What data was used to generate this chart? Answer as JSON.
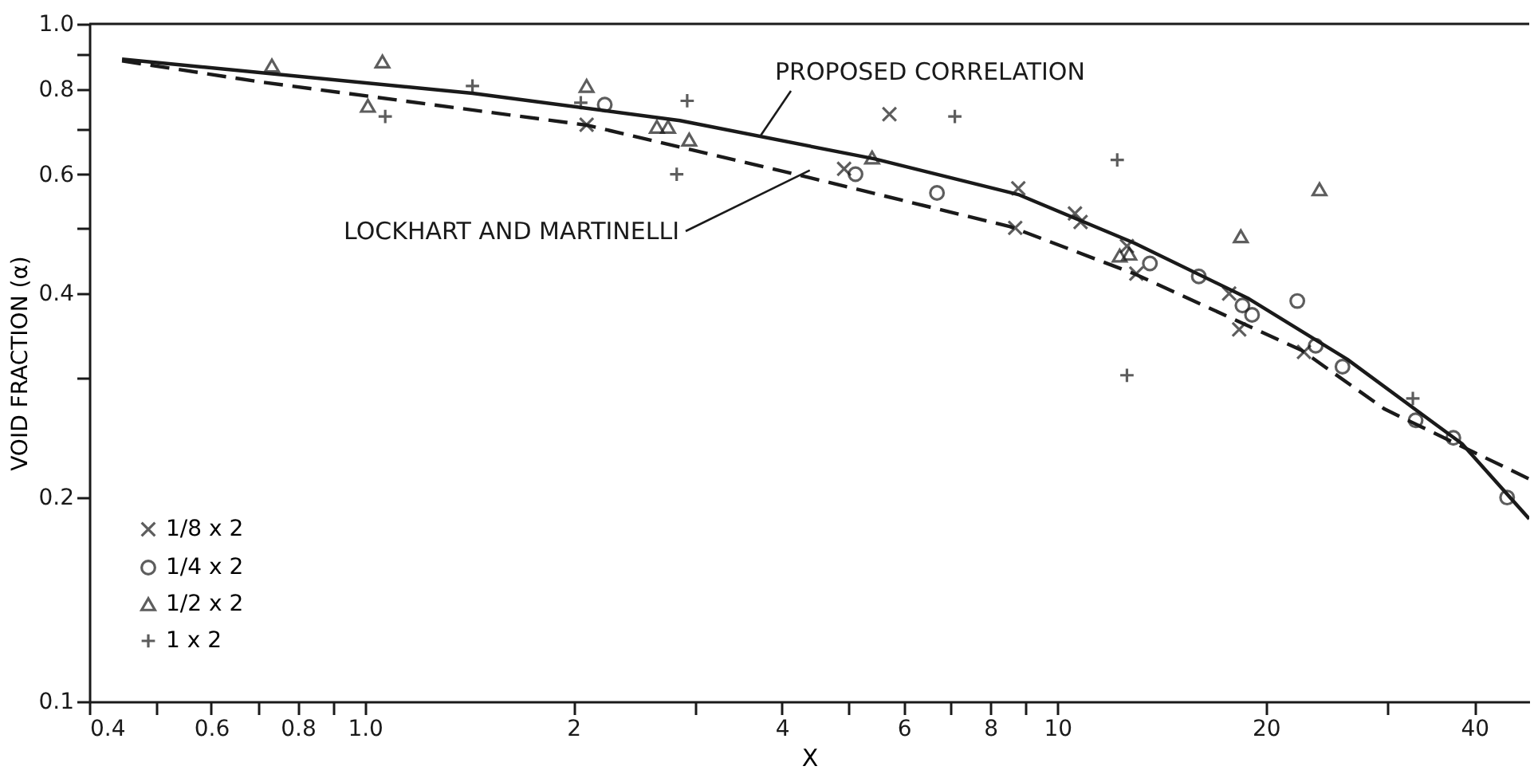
{
  "chart_data": {
    "type": "scatter",
    "xlabel": "X",
    "ylabel": "VOID FRACTION (α)",
    "log": "xy",
    "grid": false,
    "legend": "bottom left",
    "xlim": [
      0.4,
      48
    ],
    "ylim": [
      0.1,
      1.0
    ],
    "xticks": [
      0.4,
      {
        "value": 0.5,
        "label": null
      },
      0.6,
      {
        "value": 0.7,
        "label": null
      },
      0.8,
      {
        "value": 0.9,
        "label": null
      },
      {
        "value": 1,
        "label": "1.0"
      },
      2,
      {
        "value": 3,
        "label": null
      },
      4,
      {
        "value": 5,
        "label": null
      },
      6,
      {
        "value": 7,
        "label": null
      },
      8,
      {
        "value": 9,
        "label": null
      },
      10,
      20,
      {
        "value": 30,
        "label": null
      },
      40
    ],
    "yticks": [
      0.1,
      {
        "value": 0.2,
        "label": "0.2"
      },
      {
        "value": 0.3,
        "label": null
      },
      0.4,
      {
        "value": 0.5,
        "label": null
      },
      0.6,
      {
        "value": 0.7,
        "label": null
      },
      0.8,
      {
        "value": 0.9,
        "label": null
      },
      {
        "value": 1,
        "label": "1.0"
      }
    ],
    "series": [
      {
        "name": "1/8 x 2",
        "marker": "x",
        "color": "#1a1a1a",
        "x": [
          2.09,
          5.72,
          4.92,
          8.78,
          8.69,
          10.6,
          10.8,
          12.6,
          13.0,
          17.7,
          18.3,
          22.7
        ],
        "values": [
          0.71,
          0.736,
          0.611,
          0.572,
          0.5,
          0.525,
          0.51,
          0.47,
          0.428,
          0.4,
          0.354,
          0.328
        ]
      },
      {
        "name": "1/4 x 2",
        "marker": "circle",
        "color": "#1a1a1a",
        "x": [
          2.22,
          5.11,
          6.7,
          13.6,
          16.0,
          18.5,
          19.1,
          22.2,
          23.6,
          25.8,
          32.9,
          37.3,
          44.6
        ],
        "values": [
          0.76,
          0.6,
          0.563,
          0.443,
          0.424,
          0.384,
          0.372,
          0.39,
          0.335,
          0.312,
          0.26,
          0.245,
          0.2
        ]
      },
      {
        "name": "1/2 x 2",
        "marker": "triangle",
        "color": "#1a1a1a",
        "x": [
          0.734,
          1.06,
          1.01,
          2.09,
          2.64,
          2.74,
          2.94,
          5.4,
          12.3,
          12.7,
          18.4,
          23.9
        ],
        "values": [
          0.868,
          0.88,
          0.757,
          0.81,
          0.705,
          0.705,
          0.675,
          0.635,
          0.455,
          0.458,
          0.486,
          0.57
        ]
      },
      {
        "name": "1 x 2",
        "marker": "cross",
        "color": "#1a1a1a",
        "x": [
          1.07,
          1.43,
          2.05,
          2.92,
          2.82,
          7.11,
          12.2,
          12.6,
          32.6
        ],
        "values": [
          0.73,
          0.81,
          0.765,
          0.77,
          0.6,
          0.73,
          0.63,
          0.303,
          0.28
        ]
      },
      {
        "type": "line",
        "line_style": "solid",
        "color": "#1a1a1a",
        "x": [
          0.446,
          1.43,
          2.85,
          5.45,
          8.78,
          12.9,
          18.9,
          26.2,
          38.4,
          48
        ],
        "values": [
          0.887,
          0.79,
          0.72,
          0.632,
          0.56,
          0.475,
          0.393,
          0.32,
          0.24,
          0.186
        ]
      },
      {
        "type": "line",
        "line_style": "dashed",
        "color": "#1a1a1a",
        "x": [
          0.446,
          0.707,
          2.09,
          4.16,
          8.55,
          12.9,
          22.5,
          29.7,
          48
        ],
        "values": [
          0.882,
          0.821,
          0.709,
          0.601,
          0.502,
          0.428,
          0.33,
          0.27,
          0.213
        ]
      }
    ],
    "annotations": [
      {
        "text": "PROPOSED CORRELATION",
        "x": 3.73,
        "y": 0.685
      },
      {
        "text": "LOCKHART AND MARTINELLI",
        "x": 4.39,
        "y": 0.608
      }
    ]
  }
}
